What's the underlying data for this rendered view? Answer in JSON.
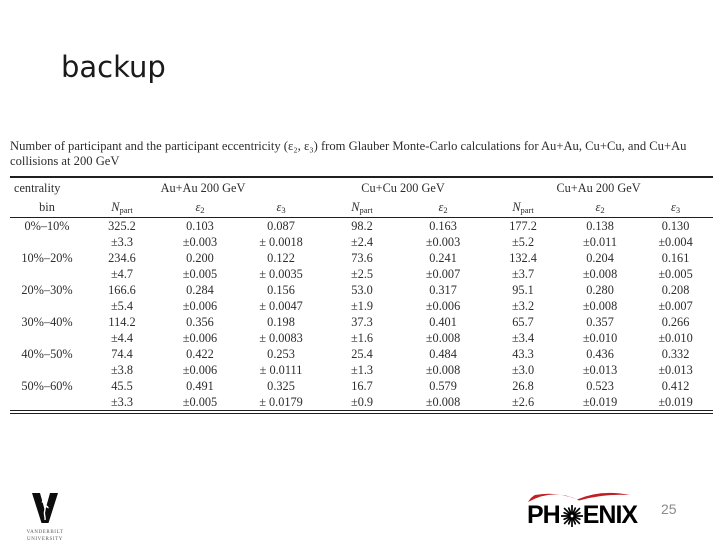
{
  "slide": {
    "title": "backup",
    "page_number": "25"
  },
  "table": {
    "caption": "Number of participant and the participant eccentricity (ε₂, ε₃) from Glauber Monte-Carlo calculations for Au+Au, Cu+Cu, and Cu+Au collisions at 200 GeV",
    "header": {
      "groups": [
        {
          "label": "centrality",
          "span": 1
        },
        {
          "label": "Au+Au 200 GeV",
          "span": 3
        },
        {
          "label": "Cu+Cu 200 GeV",
          "span": 2
        },
        {
          "label": "Cu+Au 200 GeV",
          "span": 3
        }
      ],
      "cols": [
        {
          "main": "bin",
          "sub": "",
          "italic": false
        },
        {
          "main": "N",
          "sub": "part",
          "italic": true
        },
        {
          "main": "ε",
          "sub": "2",
          "italic": true
        },
        {
          "main": "ε",
          "sub": "3",
          "italic": true
        },
        {
          "main": "N",
          "sub": "part",
          "italic": true
        },
        {
          "main": "ε",
          "sub": "2",
          "italic": true
        },
        {
          "main": "N",
          "sub": "part",
          "italic": true
        },
        {
          "main": "ε",
          "sub": "2",
          "italic": true
        },
        {
          "main": "ε",
          "sub": "3",
          "italic": true
        }
      ]
    },
    "rows": [
      {
        "values": [
          "0%–10%",
          "325.2",
          "0.103",
          "0.087",
          "98.2",
          "0.163",
          "177.2",
          "0.138",
          "0.130"
        ],
        "errors": [
          "",
          "±3.3",
          "±0.003",
          "± 0.0018",
          "±2.4",
          "±0.003",
          "±5.2",
          "±0.011",
          "±0.004"
        ]
      },
      {
        "values": [
          "10%–20%",
          "234.6",
          "0.200",
          "0.122",
          "73.6",
          "0.241",
          "132.4",
          "0.204",
          "0.161"
        ],
        "errors": [
          "",
          "±4.7",
          "±0.005",
          "± 0.0035",
          "±2.5",
          "±0.007",
          "±3.7",
          "±0.008",
          "±0.005"
        ]
      },
      {
        "values": [
          "20%–30%",
          "166.6",
          "0.284",
          "0.156",
          "53.0",
          "0.317",
          "95.1",
          "0.280",
          "0.208"
        ],
        "errors": [
          "",
          "±5.4",
          "±0.006",
          "± 0.0047",
          "±1.9",
          "±0.006",
          "±3.2",
          "±0.008",
          "±0.007"
        ]
      },
      {
        "values": [
          "30%–40%",
          "114.2",
          "0.356",
          "0.198",
          "37.3",
          "0.401",
          "65.7",
          "0.357",
          "0.266"
        ],
        "errors": [
          "",
          "±4.4",
          "±0.006",
          "± 0.0083",
          "±1.6",
          "±0.008",
          "±3.4",
          "±0.010",
          "±0.010"
        ]
      },
      {
        "values": [
          "40%–50%",
          "74.4",
          "0.422",
          "0.253",
          "25.4",
          "0.484",
          "43.3",
          "0.436",
          "0.332"
        ],
        "errors": [
          "",
          "±3.8",
          "±0.006",
          "± 0.0111",
          "±1.3",
          "±0.008",
          "±3.0",
          "±0.013",
          "±0.013"
        ]
      },
      {
        "values": [
          "50%–60%",
          "45.5",
          "0.491",
          "0.325",
          "16.7",
          "0.579",
          "26.8",
          "0.523",
          "0.412"
        ],
        "errors": [
          "",
          "±3.3",
          "±0.005",
          "± 0.0179",
          "±0.9",
          "±0.008",
          "±2.6",
          "±0.019",
          "±0.019"
        ]
      }
    ]
  },
  "logos": {
    "vanderbilt": {
      "line1": "VANDERBILT",
      "line2": "UNIVERSITY"
    },
    "phenix": {
      "part1": "PH",
      "part2": "ENIX",
      "red": "#c41e25",
      "black": "#000000"
    }
  }
}
